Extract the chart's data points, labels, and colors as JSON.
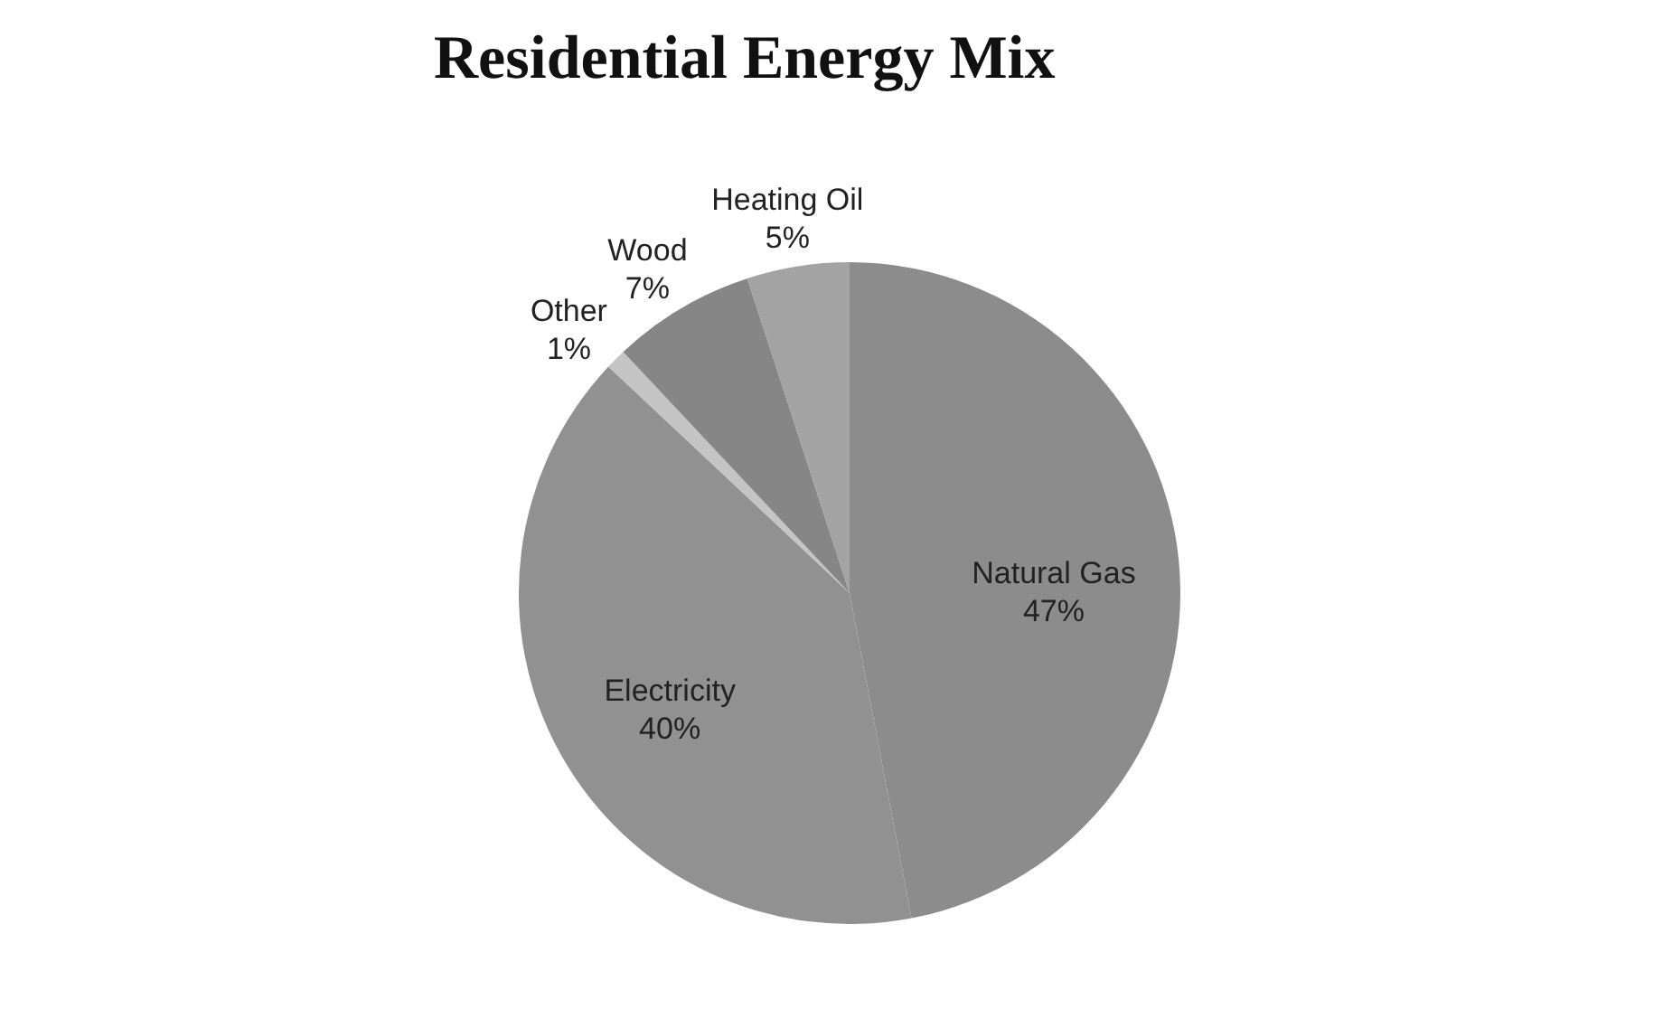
{
  "chart_data": {
    "type": "pie",
    "title": "Residential Energy Mix",
    "categories": [
      "Natural Gas",
      "Electricity",
      "Other",
      "Wood",
      "Heating Oil"
    ],
    "values": [
      47,
      40,
      1,
      7,
      5
    ],
    "value_labels": [
      "47%",
      "40%",
      "1%",
      "7%",
      "5%"
    ],
    "colors": [
      "#8c8c8c",
      "#919191",
      "#c4c4c4",
      "#868686",
      "#a3a3a3"
    ],
    "legend": false
  }
}
